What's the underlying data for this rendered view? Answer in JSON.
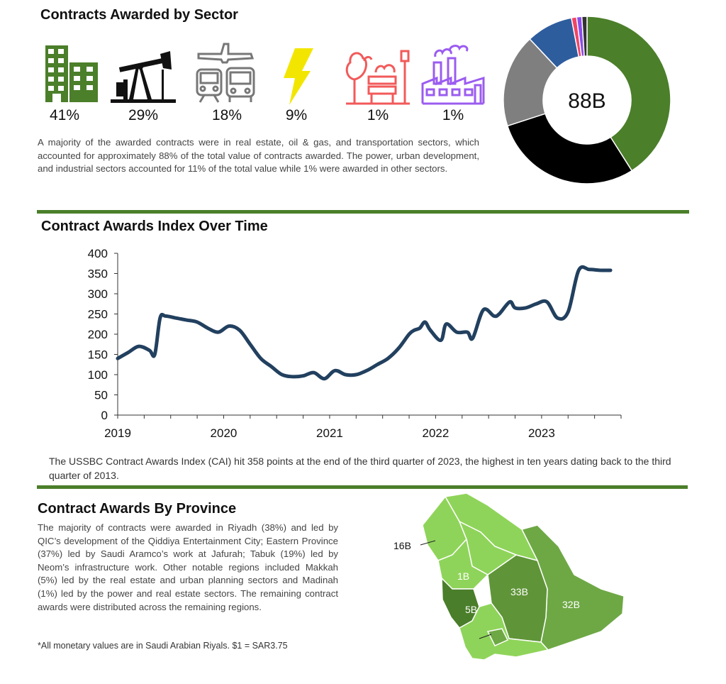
{
  "sector": {
    "title": "Contracts Awarded by Sector",
    "icons": [
      {
        "icon": "buildings-icon",
        "pct": "41%",
        "color": "#4b7f2a"
      },
      {
        "icon": "oil-pump-icon",
        "pct": "29%",
        "color": "#111111"
      },
      {
        "icon": "transport-icon",
        "pct": "18%",
        "color": "#777777"
      },
      {
        "icon": "lightning-icon",
        "pct": "9%",
        "color": "#f2e600"
      },
      {
        "icon": "urban-park-icon",
        "pct": "1%",
        "color": "#f25a5a"
      },
      {
        "icon": "factory-icon",
        "pct": "1%",
        "color": "#9b5cf0"
      }
    ],
    "paragraph": "A majority of the awarded contracts were in real estate, oil & gas, and transportation sectors, which accounted for approximately 88% of the total value of contracts awarded. The power, urban development, and industrial sectors accounted for 11% of the total value while 1% were awarded in other sectors.",
    "donut_label": "88B"
  },
  "index": {
    "title": "Contract Awards Index Over Time",
    "paragraph": "The USSBC Contract Awards Index (CAI) hit 358 points at the end of the third quarter of 2023, the highest in ten years dating back to the third quarter of 2013."
  },
  "province": {
    "title": "Contract Awards By Province",
    "paragraph": "The majority of contracts were awarded in Riyadh (38%) and led by QIC’s development of the Qiddiya Entertainment City; Eastern Province (37%) led by Saudi Aramco’s work at Jafurah; Tabuk (19%) led by Neom’s infrastructure work. Other notable regions included Makkah (5%) led by the real estate and urban planning sectors and Madinah (1%) led by the power and real estate sectors. The remaining contract awards were distributed across the remaining regions.",
    "footnote": "*All monetary values are in Saudi Arabian Riyals. $1 = SAR3.75",
    "map_labels": {
      "tabuk": "16B",
      "madinah": "1B",
      "makkah": "5B",
      "riyadh": "33B",
      "eastern": "32B"
    },
    "colors": {
      "dark": "#4a7e2a",
      "mid": "#6ea845",
      "light": "#8fd45a"
    }
  },
  "chart_data": [
    {
      "type": "pie",
      "labels": [
        "Real estate",
        "Oil & gas",
        "Transportation",
        "Power",
        "Urban development",
        "Industrial",
        "Other"
      ],
      "values": [
        41,
        29,
        18,
        9,
        1,
        1,
        1
      ],
      "colors": [
        "#4b7f2a",
        "#000000",
        "#7f7f7f",
        "#2e5d9e",
        "#ef4565",
        "#8a4de8",
        "#333333"
      ],
      "center_label": "88B"
    },
    {
      "type": "line",
      "title": "Contract Awards Index Over Time",
      "x_ticks": [
        "2019",
        "2020",
        "2021",
        "2022",
        "2023"
      ],
      "y_ticks": [
        "0",
        "50",
        "100",
        "150",
        "200",
        "250",
        "300",
        "350",
        "400"
      ],
      "ylim": [
        0,
        400
      ],
      "xlim": [
        2019.0,
        2023.75
      ],
      "line_color": "#22405f",
      "grid": false,
      "x": [
        2019.0,
        2019.1,
        2019.2,
        2019.3,
        2019.35,
        2019.4,
        2019.45,
        2019.55,
        2019.65,
        2019.75,
        2019.85,
        2019.95,
        2020.05,
        2020.15,
        2020.25,
        2020.35,
        2020.45,
        2020.55,
        2020.65,
        2020.75,
        2020.85,
        2020.95,
        2021.05,
        2021.15,
        2021.25,
        2021.35,
        2021.45,
        2021.55,
        2021.65,
        2021.75,
        2021.8,
        2021.85,
        2021.9,
        2021.95,
        2022.05,
        2022.1,
        2022.2,
        2022.3,
        2022.35,
        2022.45,
        2022.55,
        2022.6,
        2022.7,
        2022.75,
        2022.85,
        2022.95,
        2023.05,
        2023.15,
        2023.25,
        2023.35,
        2023.45,
        2023.55,
        2023.6,
        2023.65
      ],
      "y": [
        140,
        155,
        170,
        160,
        150,
        240,
        245,
        240,
        235,
        230,
        215,
        205,
        220,
        210,
        175,
        140,
        120,
        100,
        95,
        97,
        105,
        90,
        110,
        100,
        100,
        110,
        125,
        140,
        165,
        200,
        210,
        215,
        230,
        210,
        185,
        225,
        205,
        205,
        190,
        260,
        245,
        250,
        280,
        265,
        265,
        275,
        280,
        240,
        255,
        358,
        360,
        358,
        358,
        358
      ]
    }
  ]
}
